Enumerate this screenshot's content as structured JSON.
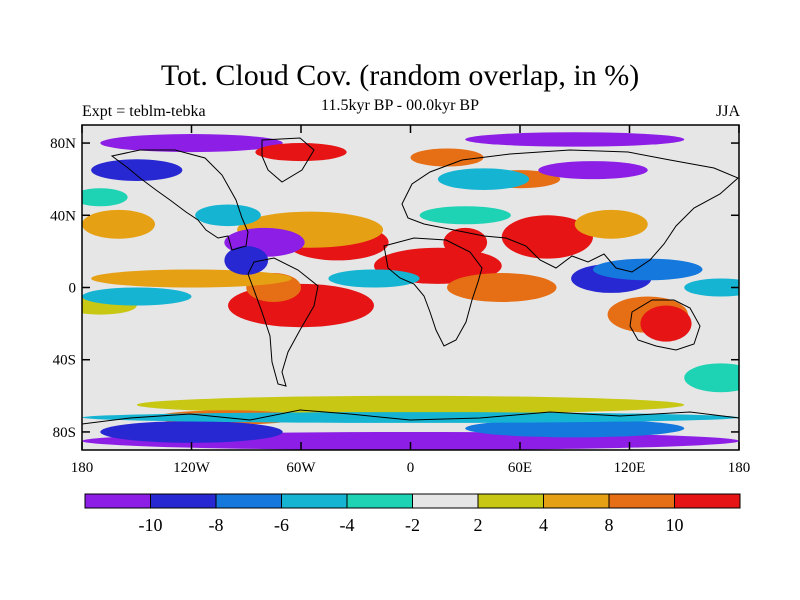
{
  "chart_data": {
    "type": "heatmap",
    "title": "Tot. Cloud Cov. (random overlap, in %)",
    "subtitle": "11.5kyr BP - 00.0kyr BP",
    "left_label": "Expt = teblm-tebka",
    "right_label": "JJA",
    "x_ticks": [
      "180",
      "120W",
      "60W",
      "0",
      "60E",
      "120E",
      "180"
    ],
    "x_values": [
      -180,
      -120,
      -60,
      0,
      60,
      120,
      180
    ],
    "y_ticks": [
      "80N",
      "40N",
      "0",
      "40S",
      "80S"
    ],
    "y_values": [
      80,
      40,
      0,
      -40,
      -80
    ],
    "xlim": [
      -180,
      180
    ],
    "ylim": [
      -90,
      90
    ],
    "colorbar": {
      "colors": [
        "#8c1ee6",
        "#2828d2",
        "#1478dc",
        "#14b4d2",
        "#1ed2b4",
        "#e6e6e6",
        "#c8c814",
        "#e6a014",
        "#e66e14",
        "#e61414"
      ],
      "labels": [
        "-10",
        "-8",
        "-6",
        "-4",
        "-2",
        "2",
        "4",
        "8",
        "10"
      ]
    },
    "regions": [
      {
        "lon": -60,
        "lat": -10,
        "rx": 40,
        "ry": 12,
        "level": 9
      },
      {
        "lon": -75,
        "lat": 0,
        "rx": 15,
        "ry": 8,
        "level": 8
      },
      {
        "lon": -40,
        "lat": 25,
        "rx": 28,
        "ry": 10,
        "level": 9
      },
      {
        "lon": -55,
        "lat": 32,
        "rx": 40,
        "ry": 10,
        "level": 7
      },
      {
        "lon": 15,
        "lat": 12,
        "rx": 35,
        "ry": 10,
        "level": 9
      },
      {
        "lon": 30,
        "lat": 25,
        "rx": 12,
        "ry": 8,
        "level": 9
      },
      {
        "lon": 75,
        "lat": 28,
        "rx": 25,
        "ry": 12,
        "level": 9
      },
      {
        "lon": 110,
        "lat": 35,
        "rx": 20,
        "ry": 8,
        "level": 7
      },
      {
        "lon": 50,
        "lat": 0,
        "rx": 30,
        "ry": 8,
        "level": 8
      },
      {
        "lon": 130,
        "lat": -15,
        "rx": 22,
        "ry": 10,
        "level": 8
      },
      {
        "lon": 140,
        "lat": -20,
        "rx": 14,
        "ry": 10,
        "level": 9
      },
      {
        "lon": -160,
        "lat": 35,
        "rx": 20,
        "ry": 8,
        "level": 7
      },
      {
        "lon": -120,
        "lat": 5,
        "rx": 55,
        "ry": 5,
        "level": 7
      },
      {
        "lon": 0,
        "lat": -65,
        "rx": 150,
        "ry": 5,
        "level": 6
      },
      {
        "lon": -100,
        "lat": -72,
        "rx": 40,
        "ry": 4,
        "level": 8
      },
      {
        "lon": 60,
        "lat": 60,
        "rx": 22,
        "ry": 5,
        "level": 8
      },
      {
        "lon": -170,
        "lat": -10,
        "rx": 20,
        "ry": 5,
        "level": 6
      },
      {
        "lon": -80,
        "lat": 25,
        "rx": 22,
        "ry": 8,
        "level": 0
      },
      {
        "lon": -90,
        "lat": 15,
        "rx": 12,
        "ry": 8,
        "level": 1
      },
      {
        "lon": -100,
        "lat": 40,
        "rx": 18,
        "ry": 6,
        "level": 3
      },
      {
        "lon": 110,
        "lat": 5,
        "rx": 22,
        "ry": 8,
        "level": 1
      },
      {
        "lon": 130,
        "lat": 10,
        "rx": 30,
        "ry": 6,
        "level": 2
      },
      {
        "lon": 170,
        "lat": 0,
        "rx": 20,
        "ry": 5,
        "level": 3
      },
      {
        "lon": -150,
        "lat": -5,
        "rx": 30,
        "ry": 5,
        "level": 3
      },
      {
        "lon": -20,
        "lat": 5,
        "rx": 25,
        "ry": 5,
        "level": 3
      },
      {
        "lon": 40,
        "lat": 60,
        "rx": 25,
        "ry": 6,
        "level": 3
      },
      {
        "lon": -150,
        "lat": 65,
        "rx": 25,
        "ry": 6,
        "level": 1
      },
      {
        "lon": 100,
        "lat": 65,
        "rx": 30,
        "ry": 5,
        "level": 0
      },
      {
        "lon": 0,
        "lat": -85,
        "rx": 180,
        "ry": 5,
        "level": 0
      },
      {
        "lon": -120,
        "lat": -80,
        "rx": 50,
        "ry": 6,
        "level": 1
      },
      {
        "lon": 90,
        "lat": -78,
        "rx": 60,
        "ry": 5,
        "level": 2
      },
      {
        "lon": 0,
        "lat": -72,
        "rx": 180,
        "ry": 3,
        "level": 3
      },
      {
        "lon": -120,
        "lat": 80,
        "rx": 50,
        "ry": 5,
        "level": 0
      },
      {
        "lon": 90,
        "lat": 82,
        "rx": 60,
        "ry": 4,
        "level": 0
      },
      {
        "lon": -60,
        "lat": 75,
        "rx": 25,
        "ry": 5,
        "level": 9
      },
      {
        "lon": 20,
        "lat": 72,
        "rx": 20,
        "ry": 5,
        "level": 8
      },
      {
        "lon": 30,
        "lat": 40,
        "rx": 25,
        "ry": 5,
        "level": 4
      },
      {
        "lon": -170,
        "lat": 50,
        "rx": 15,
        "ry": 5,
        "level": 4
      },
      {
        "lon": 170,
        "lat": -50,
        "rx": 20,
        "ry": 8,
        "level": 4
      }
    ]
  }
}
